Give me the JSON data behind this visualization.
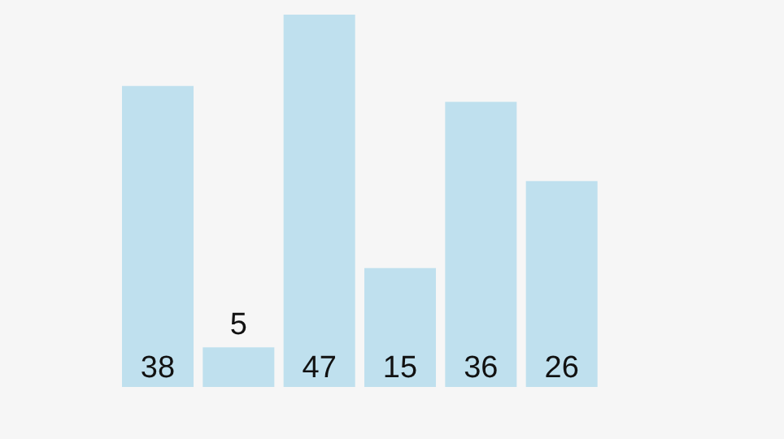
{
  "chart_data": {
    "type": "bar",
    "categories": [
      null,
      null,
      null,
      null,
      null,
      null
    ],
    "values": [
      38,
      5,
      47,
      15,
      36,
      26
    ],
    "color": "#bfe0ee",
    "data_labels": true
  }
}
